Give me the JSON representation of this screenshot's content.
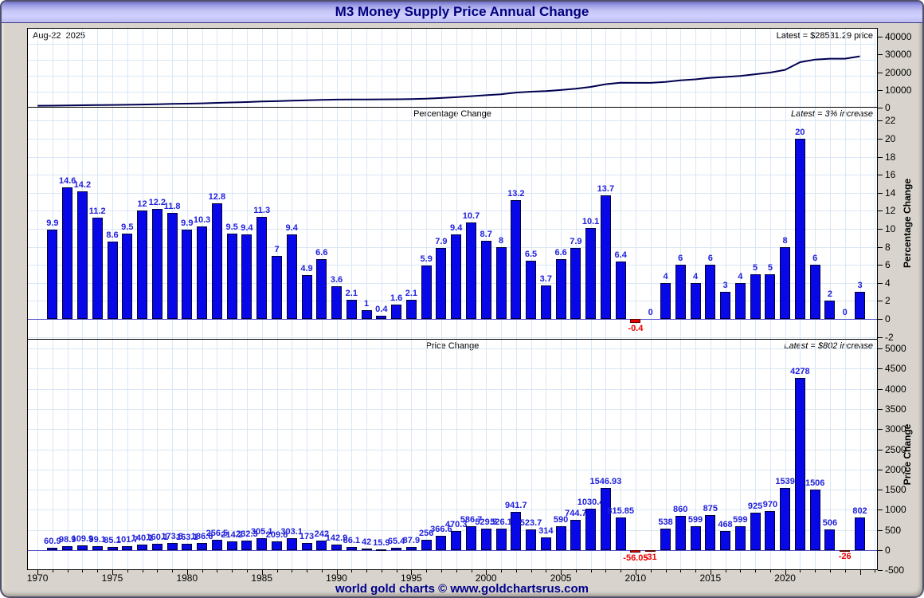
{
  "window": {
    "title": "M3 Money Supply Price Annual Change",
    "footer": "world gold charts © www.goldchartsrus.com"
  },
  "panels": {
    "price_line": {
      "date_label": "Aug-22  2025",
      "latest_label": "Latest = $28531.29 price",
      "yticks": [
        0,
        10000,
        20000,
        30000,
        40000
      ]
    },
    "percentage": {
      "header": "Percentage Change",
      "latest_label": "Latest = 3% increase",
      "axis_title": "Percentage Change",
      "yticks": [
        -2,
        0,
        2,
        4,
        6,
        8,
        10,
        12,
        14,
        16,
        18,
        20,
        22
      ]
    },
    "price_change": {
      "header": "Price Change",
      "latest_label": "Latest = $802 increase",
      "axis_title": "Price Change",
      "yticks": [
        -500,
        0,
        500,
        1000,
        1500,
        2000,
        2500,
        3000,
        3500,
        4000,
        4500,
        5000
      ]
    }
  },
  "x_axis": {
    "tick_labels": [
      1970,
      1975,
      1980,
      1985,
      1990,
      1995,
      2000,
      2005,
      2010,
      2015,
      2020
    ]
  },
  "colors": {
    "bar_positive": "#0707e8",
    "bar_negative": "#e80000",
    "bar_label": "#2121dd",
    "bar_label_negative": "#ee0000",
    "line": "#000050",
    "grid": "#d9e7f5",
    "title_text": "#00007d",
    "footer_text": "#00008b",
    "window_bg": "#d8d4cd"
  },
  "chart_data": [
    {
      "type": "line",
      "title": "M3 Money Supply Price",
      "latest": "$28531.29",
      "ylim": [
        0,
        45000
      ],
      "x": [
        1970,
        1971,
        1972,
        1973,
        1974,
        1975,
        1976,
        1977,
        1978,
        1979,
        1980,
        1981,
        1982,
        1983,
        1984,
        1985,
        1986,
        1987,
        1988,
        1989,
        1990,
        1991,
        1992,
        1993,
        1994,
        1995,
        1996,
        1997,
        1998,
        1999,
        2000,
        2001,
        2002,
        2003,
        2004,
        2005,
        2006,
        2007,
        2008,
        2009,
        2010,
        2011,
        2012,
        2013,
        2014,
        2015,
        2016,
        2017,
        2018,
        2019,
        2020,
        2021,
        2022,
        2023,
        2024,
        2025
      ],
      "y": [
        616,
        677,
        776,
        886,
        985,
        1070,
        1172,
        1312,
        1472,
        1646,
        1809,
        1996,
        2252,
        2466,
        2699,
        3004,
        3213,
        3516,
        3689,
        3931,
        4074,
        4160,
        4202,
        4218,
        4284,
        4372,
        4628,
        4994,
        5464,
        6051,
        6581,
        7107,
        8049,
        8572,
        8886,
        9476,
        10221,
        11251,
        12798,
        13614,
        13558,
        13527,
        14065,
        14925,
        15524,
        16399,
        16867,
        17466,
        18391,
        19361,
        20900,
        25178,
        26684,
        27190,
        27164,
        28531
      ]
    },
    {
      "type": "bar",
      "title": "Percentage Change",
      "latest": "3%",
      "ylim": [
        -2.4,
        23.4
      ],
      "x": [
        1971,
        1972,
        1973,
        1974,
        1975,
        1976,
        1977,
        1978,
        1979,
        1980,
        1981,
        1982,
        1983,
        1984,
        1985,
        1986,
        1987,
        1988,
        1989,
        1990,
        1991,
        1992,
        1993,
        1994,
        1995,
        1996,
        1997,
        1998,
        1999,
        2000,
        2001,
        2002,
        2003,
        2004,
        2005,
        2006,
        2007,
        2008,
        2009,
        2010,
        2011,
        2012,
        2013,
        2014,
        2015,
        2016,
        2017,
        2018,
        2019,
        2020,
        2021,
        2022,
        2023,
        2024,
        2025
      ],
      "values": [
        9.9,
        14.6,
        14.2,
        11.2,
        8.6,
        9.5,
        12,
        12.2,
        11.8,
        9.9,
        10.3,
        12.8,
        9.5,
        9.4,
        11.3,
        7,
        9.4,
        4.9,
        6.6,
        3.6,
        2.1,
        1,
        0.4,
        1.6,
        2.1,
        5.9,
        7.9,
        9.4,
        10.7,
        8.7,
        8,
        13.2,
        6.5,
        3.7,
        6.6,
        7.9,
        10.1,
        13.7,
        6.4,
        -0.4,
        0,
        4,
        6,
        4,
        6,
        3,
        4,
        5,
        5,
        8,
        20,
        6,
        2,
        0,
        3
      ]
    },
    {
      "type": "bar",
      "title": "Price Change",
      "latest": "$802",
      "ylim": [
        -550,
        5220
      ],
      "x": [
        1971,
        1972,
        1973,
        1974,
        1975,
        1976,
        1977,
        1978,
        1979,
        1980,
        1981,
        1982,
        1983,
        1984,
        1985,
        1986,
        1987,
        1988,
        1989,
        1990,
        1991,
        1992,
        1993,
        1994,
        1995,
        1996,
        1997,
        1998,
        1999,
        2000,
        2001,
        2002,
        2003,
        2004,
        2005,
        2006,
        2007,
        2008,
        2009,
        2010,
        2011,
        2012,
        2013,
        2014,
        2015,
        2016,
        2017,
        2018,
        2019,
        2020,
        2021,
        2022,
        2023,
        2024,
        2025
      ],
      "values": [
        60.9,
        98.9,
        109.9,
        99.1,
        85.1,
        101.7,
        140.1,
        160.1,
        173.8,
        163.1,
        186.6,
        256.5,
        214.2,
        232.3,
        305.1,
        209.6,
        303.1,
        173,
        242,
        142.9,
        86.1,
        42,
        15.9,
        65.4,
        87.9,
        256,
        366.6,
        470.3,
        586.7,
        529.5,
        526.1,
        941.7,
        523.7,
        314,
        590,
        744.7,
        1030.4,
        1546.93,
        815.85,
        -56.05,
        -31,
        538,
        860,
        599,
        875,
        468,
        599,
        925,
        970,
        1539,
        4278,
        1506,
        506,
        -26,
        802
      ]
    }
  ]
}
